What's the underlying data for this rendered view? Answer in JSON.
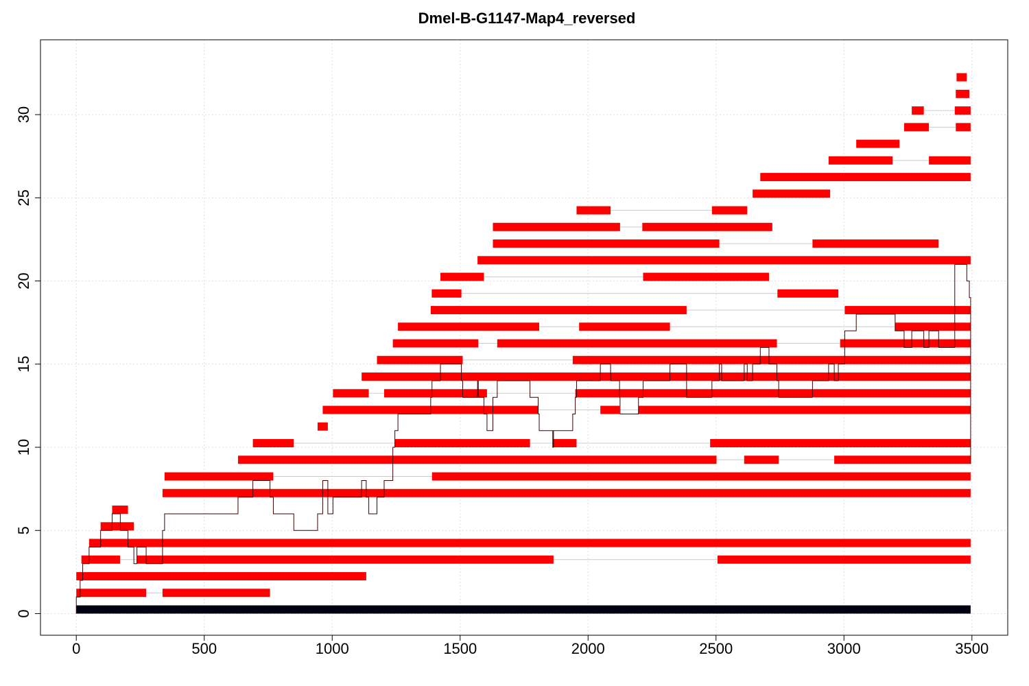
{
  "chart_data": {
    "type": "bar",
    "title": "Dmel-B-G1147-Map4_reversed",
    "xlabel": "",
    "ylabel": "",
    "xlim": [
      -140,
      3640
    ],
    "ylim": [
      -1.3,
      34.5
    ],
    "x_ticks": [
      0,
      500,
      1000,
      1500,
      2000,
      2500,
      3000,
      3500
    ],
    "y_ticks": [
      0,
      5,
      10,
      15,
      20,
      25,
      30
    ],
    "grid": true,
    "colors": {
      "segment": "#ff0000",
      "reference": "#000010",
      "connector": "#cccccc",
      "coverage": "#3a0000",
      "grid": "#dddddd"
    },
    "reference": {
      "row": 0,
      "start": 0,
      "end": 3495
    },
    "rows": [
      {
        "row": 1,
        "segments": [
          [
            0,
            273
          ],
          [
            337,
            757
          ]
        ]
      },
      {
        "row": 2,
        "segments": [
          [
            0,
            1133
          ]
        ]
      },
      {
        "row": 3,
        "segments": [
          [
            20,
            171
          ],
          [
            237,
            1865
          ],
          [
            2506,
            3495
          ]
        ]
      },
      {
        "row": 4,
        "segments": [
          [
            50,
            3495
          ]
        ]
      },
      {
        "row": 5,
        "segments": [
          [
            95,
            225
          ]
        ]
      },
      {
        "row": 6,
        "segments": [
          [
            140,
            202
          ]
        ]
      },
      {
        "row": 7,
        "segments": [
          [
            337,
            3495
          ]
        ]
      },
      {
        "row": 8,
        "segments": [
          [
            345,
            770
          ],
          [
            1390,
            3495
          ]
        ]
      },
      {
        "row": 9,
        "segments": [
          [
            632,
            2502
          ],
          [
            2610,
            2745
          ],
          [
            2962,
            3495
          ]
        ]
      },
      {
        "row": 10,
        "segments": [
          [
            690,
            850
          ],
          [
            1245,
            1773
          ],
          [
            1862,
            1955
          ],
          [
            2477,
            3495
          ]
        ]
      },
      {
        "row": 11,
        "segments": [
          [
            943,
            983
          ]
        ]
      },
      {
        "row": 12,
        "segments": [
          [
            963,
            1805
          ],
          [
            2048,
            2123
          ],
          [
            2197,
            3495
          ]
        ]
      },
      {
        "row": 13,
        "segments": [
          [
            1003,
            1143
          ],
          [
            1203,
            1605
          ],
          [
            1950,
            3495
          ]
        ]
      },
      {
        "row": 14,
        "segments": [
          [
            1115,
            3495
          ]
        ]
      },
      {
        "row": 15,
        "segments": [
          [
            1175,
            1510
          ],
          [
            1940,
            3495
          ]
        ]
      },
      {
        "row": 16,
        "segments": [
          [
            1237,
            1571
          ],
          [
            1645,
            2738
          ],
          [
            2985,
            3495
          ]
        ]
      },
      {
        "row": 17,
        "segments": [
          [
            1257,
            1809
          ],
          [
            1965,
            2320
          ],
          [
            3200,
            3495
          ]
        ]
      },
      {
        "row": 18,
        "segments": [
          [
            1385,
            2385
          ],
          [
            3003,
            3495
          ]
        ]
      },
      {
        "row": 19,
        "segments": [
          [
            1389,
            1505
          ],
          [
            2740,
            2978
          ]
        ]
      },
      {
        "row": 20,
        "segments": [
          [
            1423,
            1593
          ],
          [
            2215,
            2707
          ]
        ]
      },
      {
        "row": 21,
        "segments": [
          [
            1568,
            3495
          ]
        ]
      },
      {
        "row": 22,
        "segments": [
          [
            1628,
            2513
          ],
          [
            2877,
            3370
          ]
        ]
      },
      {
        "row": 23,
        "segments": [
          [
            1628,
            2125
          ],
          [
            2212,
            2720
          ]
        ]
      },
      {
        "row": 24,
        "segments": [
          [
            1955,
            2088
          ],
          [
            2484,
            2622
          ]
        ]
      },
      {
        "row": 25,
        "segments": [
          [
            2643,
            2946
          ]
        ]
      },
      {
        "row": 26,
        "segments": [
          [
            2673,
            3495
          ]
        ]
      },
      {
        "row": 27,
        "segments": [
          [
            2940,
            3190
          ],
          [
            3332,
            3495
          ]
        ]
      },
      {
        "row": 28,
        "segments": [
          [
            3048,
            3217
          ]
        ]
      },
      {
        "row": 29,
        "segments": [
          [
            3235,
            3332
          ],
          [
            3437,
            3495
          ]
        ]
      },
      {
        "row": 30,
        "segments": [
          [
            3265,
            3312
          ],
          [
            3433,
            3495
          ]
        ]
      },
      {
        "row": 31,
        "segments": [
          [
            3437,
            3490
          ]
        ]
      },
      {
        "row": 32,
        "segments": [
          [
            3440,
            3480
          ]
        ]
      }
    ],
    "coverage": [
      [
        0,
        1
      ],
      [
        15,
        2
      ],
      [
        25,
        3
      ],
      [
        50,
        4
      ],
      [
        95,
        5
      ],
      [
        140,
        6
      ],
      [
        172,
        5
      ],
      [
        202,
        4
      ],
      [
        225,
        3
      ],
      [
        237,
        4
      ],
      [
        273,
        3
      ],
      [
        337,
        5
      ],
      [
        345,
        6
      ],
      [
        632,
        7
      ],
      [
        690,
        8
      ],
      [
        757,
        7
      ],
      [
        770,
        6
      ],
      [
        850,
        5
      ],
      [
        943,
        6
      ],
      [
        963,
        8
      ],
      [
        983,
        6
      ],
      [
        1003,
        7
      ],
      [
        1115,
        8
      ],
      [
        1133,
        7
      ],
      [
        1143,
        6
      ],
      [
        1175,
        7
      ],
      [
        1203,
        8
      ],
      [
        1237,
        10
      ],
      [
        1245,
        11
      ],
      [
        1257,
        12
      ],
      [
        1385,
        13
      ],
      [
        1390,
        14
      ],
      [
        1423,
        15
      ],
      [
        1505,
        14
      ],
      [
        1510,
        13
      ],
      [
        1568,
        14
      ],
      [
        1571,
        13
      ],
      [
        1593,
        12
      ],
      [
        1605,
        11
      ],
      [
        1628,
        13
      ],
      [
        1645,
        14
      ],
      [
        1773,
        13
      ],
      [
        1805,
        12
      ],
      [
        1809,
        11
      ],
      [
        1862,
        10
      ],
      [
        1865,
        11
      ],
      [
        1940,
        12
      ],
      [
        1950,
        13
      ],
      [
        1955,
        14
      ],
      [
        2048,
        15
      ],
      [
        2088,
        14
      ],
      [
        2123,
        13
      ],
      [
        2125,
        12
      ],
      [
        2197,
        13
      ],
      [
        2215,
        14
      ],
      [
        2320,
        15
      ],
      [
        2385,
        13
      ],
      [
        2484,
        14
      ],
      [
        2513,
        15
      ],
      [
        2522,
        14
      ],
      [
        2610,
        15
      ],
      [
        2622,
        14
      ],
      [
        2643,
        15
      ],
      [
        2673,
        16
      ],
      [
        2707,
        15
      ],
      [
        2738,
        14
      ],
      [
        2745,
        13
      ],
      [
        2877,
        14
      ],
      [
        2940,
        15
      ],
      [
        2962,
        14
      ],
      [
        2978,
        15
      ],
      [
        3003,
        17
      ],
      [
        3048,
        18
      ],
      [
        3200,
        17
      ],
      [
        3235,
        16
      ],
      [
        3265,
        17
      ],
      [
        3312,
        16
      ],
      [
        3332,
        17
      ],
      [
        3370,
        16
      ],
      [
        3433,
        21
      ],
      [
        3480,
        20
      ],
      [
        3490,
        19
      ],
      [
        3495,
        18
      ]
    ]
  }
}
